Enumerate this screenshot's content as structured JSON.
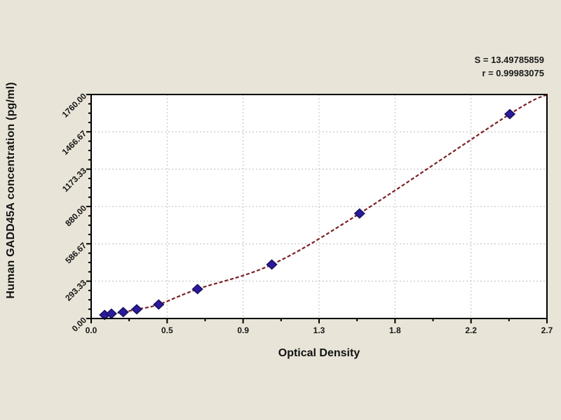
{
  "chart_data": {
    "type": "scatter",
    "title": "",
    "xlabel": "Optical Density",
    "ylabel": "Human GADD45A concentration (pg/ml)",
    "annotations": {
      "line1": "S = 13.49785859",
      "line2": "r = 0.99983075"
    },
    "xlim": [
      0,
      2.7
    ],
    "ylim": [
      0,
      1760
    ],
    "x_ticks": {
      "values": [
        0,
        0.45,
        0.9,
        1.35,
        1.8,
        2.25,
        2.7
      ],
      "labels": [
        "0.0",
        "0.5",
        "0.9",
        "1.3",
        "1.8",
        "2.2",
        "2.7"
      ]
    },
    "y_ticks": {
      "values": [
        0,
        293.33,
        586.67,
        880,
        1173.33,
        1466.67,
        1760
      ],
      "labels": [
        "0.00",
        "293.33",
        "586.67",
        "880.00",
        "1173.33",
        "1466.67",
        "1760.00"
      ]
    },
    "x_minor_per_interval": 1,
    "y_minor_per_interval": 3,
    "grid": {
      "show": true,
      "style": "dashed",
      "color": "#bcbcbc"
    },
    "legend": "none",
    "series": [
      {
        "name": "standards",
        "marker": "diamond",
        "marker_color": "#2a1a9c",
        "marker_edge_color": "#17115f",
        "points": [
          [
            0.08,
            28
          ],
          [
            0.12,
            38
          ],
          [
            0.19,
            50
          ],
          [
            0.27,
            72
          ],
          [
            0.4,
            110
          ],
          [
            0.63,
            231
          ],
          [
            1.07,
            424
          ],
          [
            1.59,
            825
          ],
          [
            2.48,
            1606
          ]
        ]
      }
    ],
    "fit_curve": {
      "color": "#7a2125",
      "style": "dashed",
      "points": [
        [
          0.06,
          15
        ],
        [
          0.08,
          28
        ],
        [
          0.12,
          38
        ],
        [
          0.19,
          50
        ],
        [
          0.27,
          72
        ],
        [
          0.4,
          110
        ],
        [
          0.63,
          231
        ],
        [
          1.07,
          424
        ],
        [
          1.59,
          825
        ],
        [
          2.48,
          1606
        ],
        [
          2.7,
          1760
        ]
      ]
    },
    "colors": {
      "page_bg": "#e8e5d8",
      "plot_bg": "#ffffff",
      "frame": "#000000",
      "text": "#161616"
    }
  }
}
